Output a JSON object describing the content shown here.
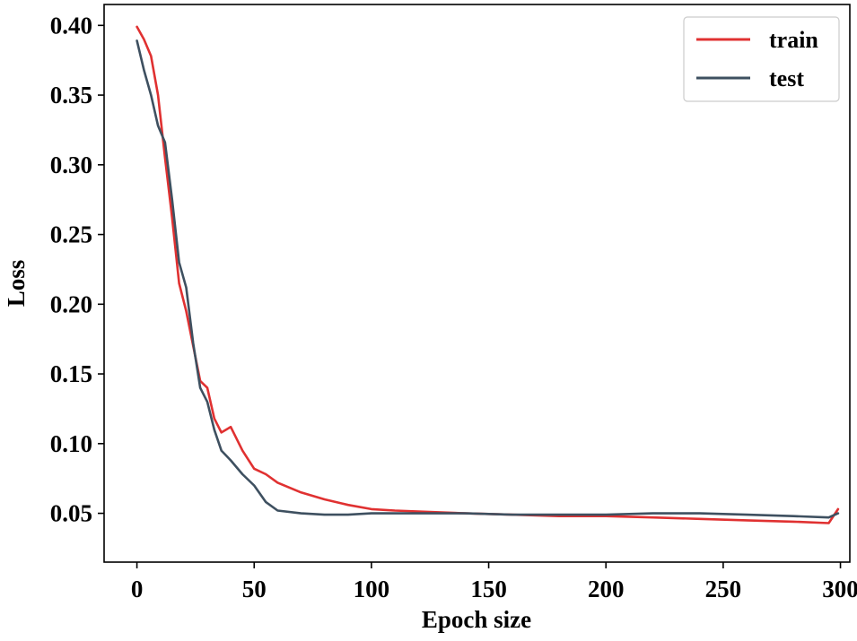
{
  "chart_data": {
    "type": "line",
    "title": "",
    "xlabel": "Epoch size",
    "ylabel": "Loss",
    "xlim": [
      -14,
      304
    ],
    "ylim": [
      0.015,
      0.415
    ],
    "xticks": [
      0,
      50,
      100,
      150,
      200,
      250,
      300
    ],
    "xtick_labels": [
      "0",
      "50",
      "100",
      "150",
      "200",
      "250",
      "300"
    ],
    "yticks": [
      0.05,
      0.1,
      0.15,
      0.2,
      0.25,
      0.3,
      0.35,
      0.4
    ],
    "ytick_labels": [
      "0.05",
      "0.10",
      "0.15",
      "0.20",
      "0.25",
      "0.30",
      "0.35",
      "0.40"
    ],
    "grid": false,
    "legend_position": "top-right",
    "series": [
      {
        "name": "train",
        "color": "#e03131",
        "x": [
          0,
          3,
          6,
          9,
          12,
          15,
          18,
          21,
          24,
          27,
          30,
          33,
          36,
          40,
          45,
          50,
          55,
          60,
          70,
          80,
          90,
          100,
          110,
          125,
          140,
          160,
          180,
          200,
          220,
          240,
          260,
          280,
          295,
          299
        ],
        "y": [
          0.399,
          0.39,
          0.378,
          0.35,
          0.305,
          0.262,
          0.215,
          0.195,
          0.17,
          0.145,
          0.14,
          0.118,
          0.108,
          0.112,
          0.095,
          0.082,
          0.078,
          0.072,
          0.065,
          0.06,
          0.056,
          0.053,
          0.052,
          0.051,
          0.05,
          0.049,
          0.048,
          0.048,
          0.047,
          0.046,
          0.045,
          0.044,
          0.043,
          0.053
        ]
      },
      {
        "name": "test",
        "color": "#3e5060",
        "x": [
          0,
          3,
          6,
          9,
          12,
          15,
          18,
          21,
          24,
          27,
          30,
          33,
          36,
          40,
          45,
          50,
          55,
          60,
          70,
          80,
          90,
          100,
          110,
          125,
          140,
          160,
          180,
          200,
          220,
          240,
          260,
          280,
          295,
          299
        ],
        "y": [
          0.389,
          0.368,
          0.35,
          0.328,
          0.316,
          0.275,
          0.23,
          0.212,
          0.172,
          0.14,
          0.13,
          0.11,
          0.095,
          0.088,
          0.078,
          0.07,
          0.058,
          0.052,
          0.05,
          0.049,
          0.049,
          0.05,
          0.05,
          0.05,
          0.05,
          0.049,
          0.049,
          0.049,
          0.05,
          0.05,
          0.049,
          0.048,
          0.047,
          0.05
        ]
      }
    ]
  }
}
